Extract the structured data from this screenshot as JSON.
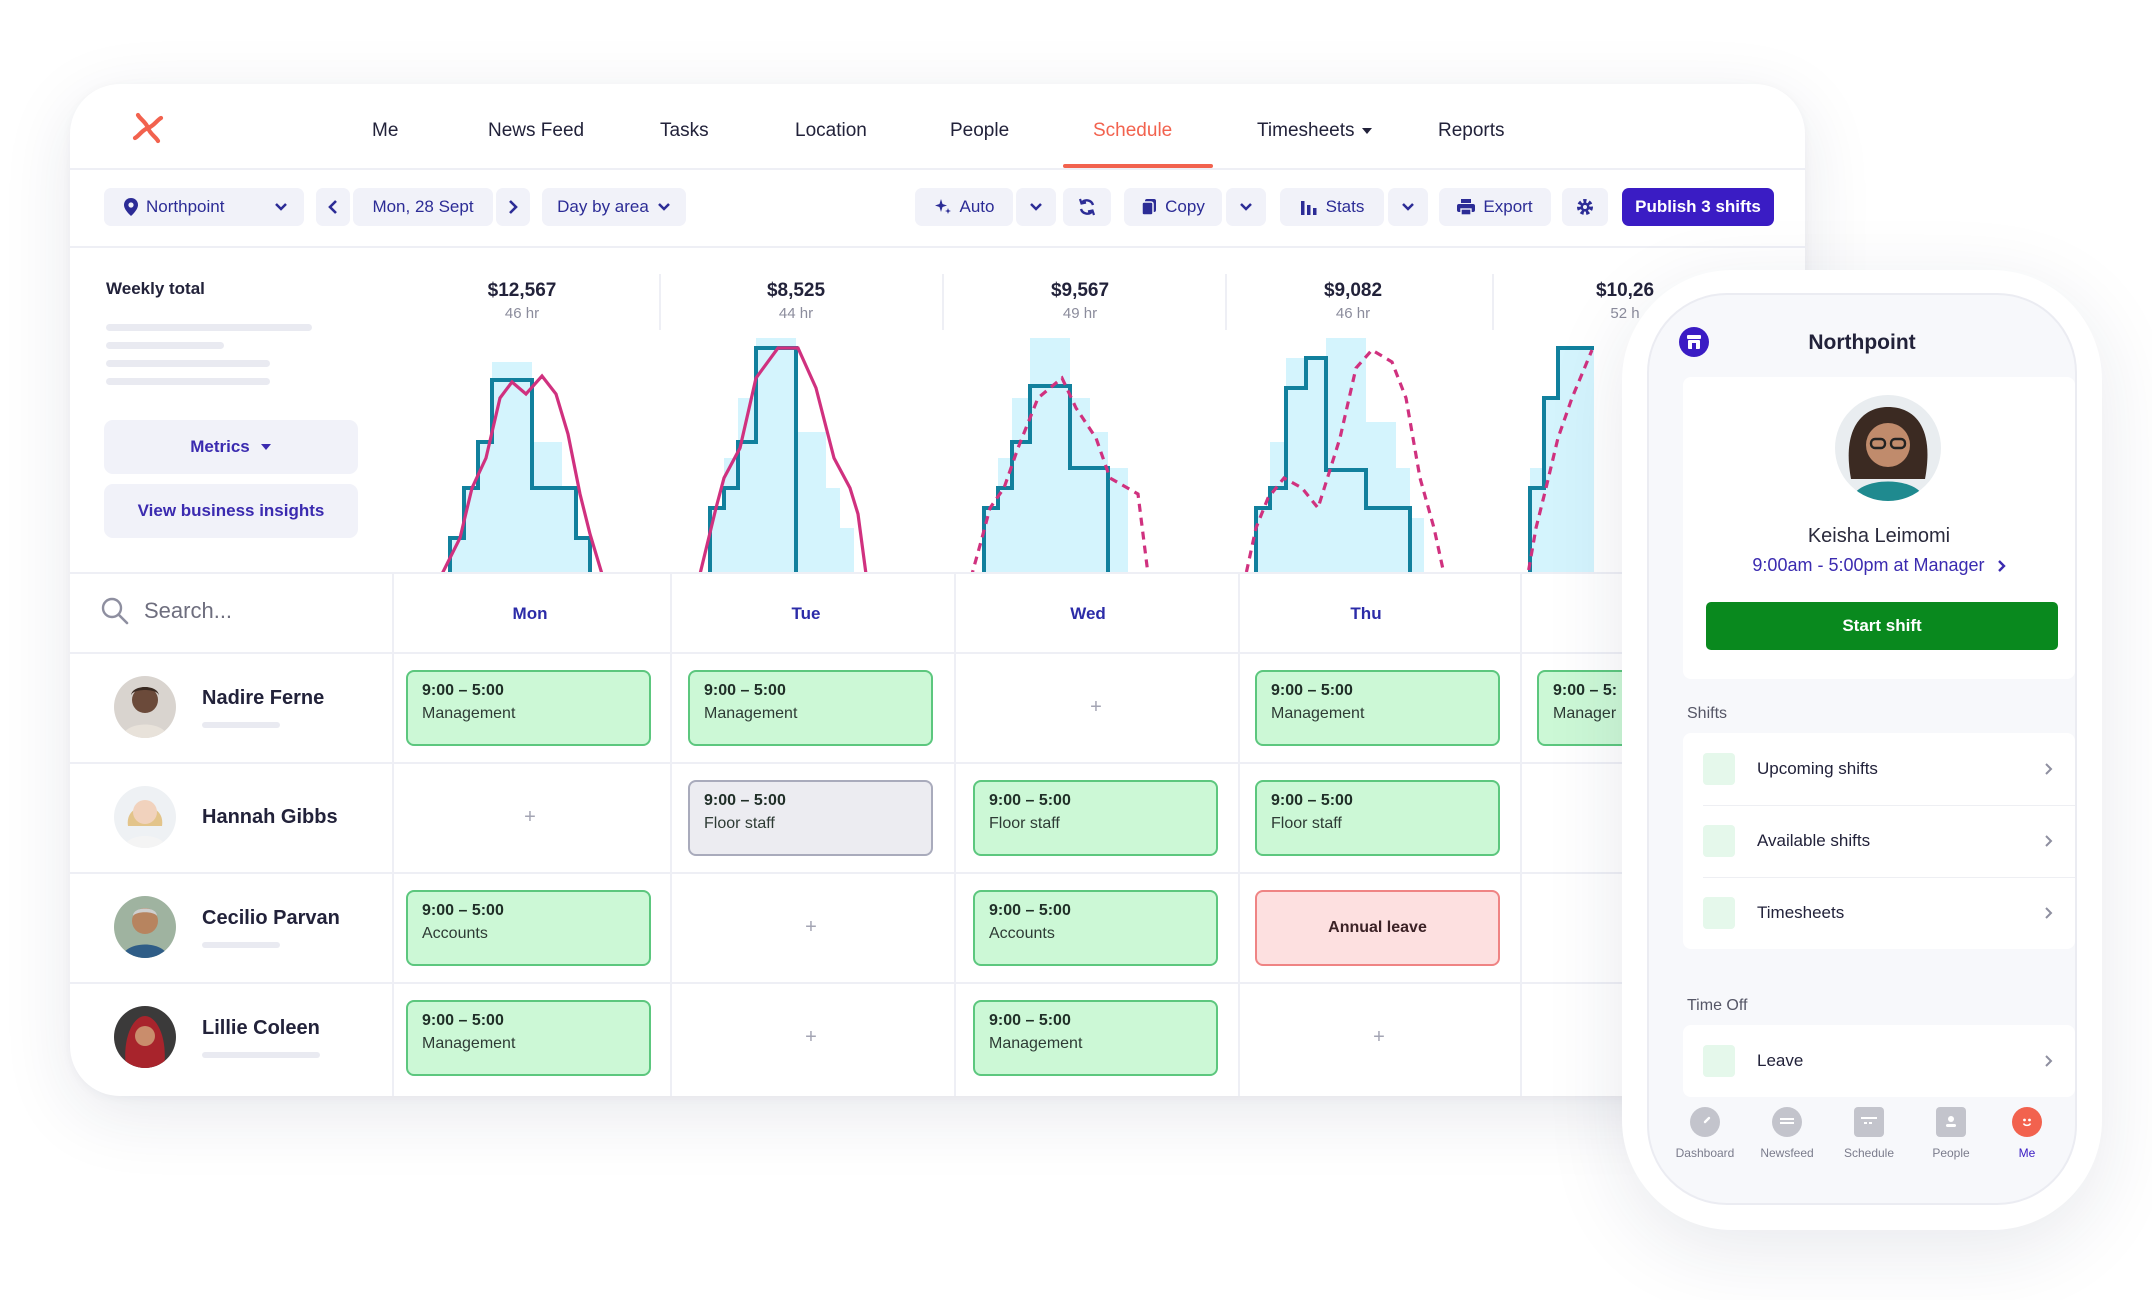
{
  "nav": {
    "items": [
      "Me",
      "News Feed",
      "Tasks",
      "Location",
      "People",
      "Schedule",
      "Timesheets",
      "Reports"
    ],
    "active": "Schedule",
    "accent": "#f2624e"
  },
  "toolbar": {
    "location": "Northpoint",
    "date": "Mon, 28 Sept",
    "view": "Day by area",
    "auto": "Auto",
    "copy": "Copy",
    "stats": "Stats",
    "export": "Export",
    "publish": "Publish 3 shifts",
    "publish_color": "#3a1cc4"
  },
  "metrics": {
    "title": "Weekly total",
    "metrics_btn": "Metrics",
    "insights_btn": "View business insights",
    "days": [
      {
        "amount": "$12,567",
        "hours": "46 hr"
      },
      {
        "amount": "$8,525",
        "hours": "44 hr"
      },
      {
        "amount": "$9,567",
        "hours": "49 hr"
      },
      {
        "amount": "$9,082",
        "hours": "46 hr"
      },
      {
        "amount": "$10,26",
        "hours": "52 h"
      }
    ]
  },
  "grid": {
    "search_placeholder": "Search...",
    "days": [
      "Mon",
      "Tue",
      "Wed",
      "Thu"
    ],
    "people": [
      {
        "name": "Nadire Ferne"
      },
      {
        "name": "Hannah Gibbs"
      },
      {
        "name": "Cecilio Parvan"
      },
      {
        "name": "Lillie Coleen"
      }
    ],
    "shifts": {
      "r0": {
        "mon": {
          "time": "9:00 – 5:00",
          "role": "Management"
        },
        "tue": {
          "time": "9:00 – 5:00",
          "role": "Management"
        },
        "thu": {
          "time": "9:00 – 5:00",
          "role": "Management"
        },
        "fri": {
          "time": "9:00 – 5:",
          "role": "Manager"
        }
      },
      "r1": {
        "tue": {
          "time": "9:00 – 5:00",
          "role": "Floor staff"
        },
        "wed": {
          "time": "9:00 – 5:00",
          "role": "Floor staff"
        },
        "thu": {
          "time": "9:00 – 5:00",
          "role": "Floor staff"
        }
      },
      "r2": {
        "mon": {
          "time": "9:00 – 5:00",
          "role": "Accounts"
        },
        "wed": {
          "time": "9:00 – 5:00",
          "role": "Accounts"
        },
        "thu": {
          "label": "Annual leave"
        }
      },
      "r3": {
        "mon": {
          "time": "9:00 – 5:00",
          "role": "Management"
        },
        "wed": {
          "time": "9:00 – 5:00",
          "role": "Management"
        }
      }
    },
    "plus": "+"
  },
  "phone": {
    "title": "Northpoint",
    "name": "Keisha Leimomi",
    "shift": "9:00am - 5:00pm at Manager",
    "start": "Start shift",
    "start_color": "#09891e",
    "shifts_label": "Shifts",
    "shift_items": [
      "Upcoming shifts",
      "Available shifts",
      "Timesheets"
    ],
    "timeoff_label": "Time Off",
    "leave": "Leave",
    "tabs": [
      "Dashboard",
      "Newsfeed",
      "Schedule",
      "People",
      "Me"
    ],
    "active_tab": "Me"
  }
}
